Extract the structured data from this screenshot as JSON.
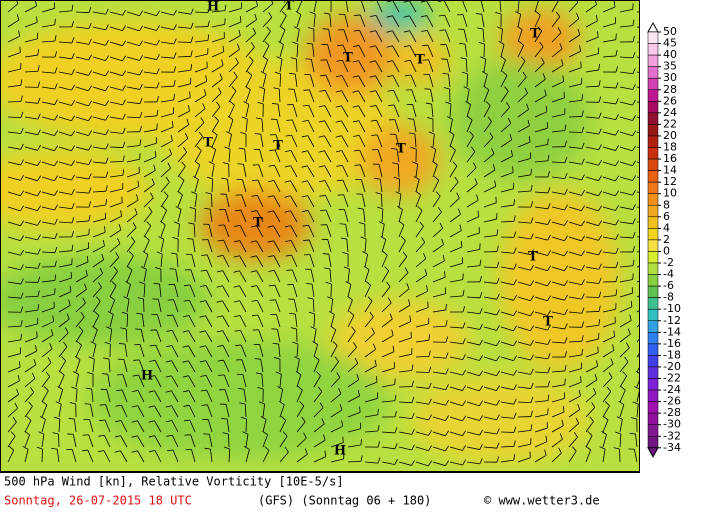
{
  "map": {
    "pressure_labels": [
      "H",
      "T",
      "T",
      "T",
      "T",
      "T",
      "T",
      "T",
      "T",
      "T",
      "T",
      "H",
      "H"
    ]
  },
  "legend": {
    "levels": [
      50,
      45,
      40,
      35,
      30,
      28,
      26,
      24,
      22,
      20,
      18,
      16,
      14,
      12,
      10,
      8,
      6,
      4,
      2,
      0,
      -2,
      -4,
      -6,
      -8,
      -10,
      -12,
      -14,
      -16,
      -18,
      -20,
      -22,
      -24,
      -26,
      -28,
      -30,
      -32,
      -34
    ],
    "colors": [
      "#fde6f4",
      "#f8c8ea",
      "#f0a0dc",
      "#e070cc",
      "#d040b0",
      "#c01890",
      "#a80c60",
      "#901030",
      "#981818",
      "#b02010",
      "#c83010",
      "#d84810",
      "#e86010",
      "#f07818",
      "#f09018",
      "#f0a820",
      "#f0c020",
      "#f0d420",
      "#f4e040",
      "#d8ec30",
      "#b0e040",
      "#88d040",
      "#60c050",
      "#40c090",
      "#30c0c0",
      "#30a0e0",
      "#3080f0",
      "#3060f0",
      "#4040e8",
      "#6030e0",
      "#8020d8",
      "#9018c0",
      "#a010b0",
      "#9010a0",
      "#801890",
      "#701880"
    ]
  },
  "footer": {
    "title": "500 hPa Wind [kn], Relative Vorticity [10E-5/s]",
    "date": "Sonntag, 26-07-2015  18 UTC",
    "model": "(GFS)  (Sonntag 06 + 180)",
    "copyright": "© www.wetter3.de"
  }
}
